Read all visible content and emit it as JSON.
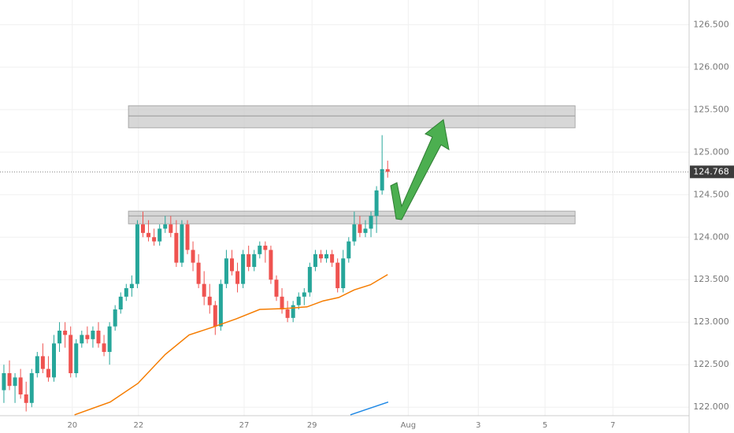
{
  "chart_data": {
    "type": "candlestick",
    "up_color": "#26a69a",
    "down_color": "#ef5350",
    "grid": true,
    "ylim": [
      121.9,
      126.79
    ],
    "yticks": [
      {
        "value": 122.0,
        "label": "122.000"
      },
      {
        "value": 122.5,
        "label": "122.500"
      },
      {
        "value": 123.0,
        "label": "123.000"
      },
      {
        "value": 123.5,
        "label": "123.500"
      },
      {
        "value": 124.0,
        "label": "124.000"
      },
      {
        "value": 124.5,
        "label": "124.500"
      },
      {
        "value": 125.0,
        "label": "125.000"
      },
      {
        "value": 125.5,
        "label": "125.500"
      },
      {
        "value": 126.0,
        "label": "126.000"
      },
      {
        "value": 126.5,
        "label": "126.500"
      }
    ],
    "xlim": [
      -0.7,
      123.2
    ],
    "xticks": [
      {
        "value": 12.3,
        "label": "20"
      },
      {
        "value": 24.2,
        "label": "22"
      },
      {
        "value": 43.2,
        "label": "27"
      },
      {
        "value": 55.4,
        "label": "29"
      },
      {
        "value": 72.7,
        "label": "Aug"
      },
      {
        "value": 85.3,
        "label": "3"
      },
      {
        "value": 97.3,
        "label": "5"
      },
      {
        "value": 109.5,
        "label": "7"
      }
    ],
    "last_price": 124.768,
    "ohlc": [
      [
        122.2,
        122.5,
        122.05,
        122.4
      ],
      [
        122.4,
        122.55,
        122.2,
        122.25
      ],
      [
        122.25,
        122.4,
        122.05,
        122.35
      ],
      [
        122.35,
        122.45,
        122.1,
        122.15
      ],
      [
        122.15,
        122.3,
        121.95,
        122.05
      ],
      [
        122.05,
        122.45,
        122.0,
        122.4
      ],
      [
        122.4,
        122.65,
        122.35,
        122.6
      ],
      [
        122.6,
        122.75,
        122.4,
        122.45
      ],
      [
        122.45,
        122.6,
        122.3,
        122.35
      ],
      [
        122.35,
        122.85,
        122.3,
        122.75
      ],
      [
        122.75,
        123.0,
        122.65,
        122.9
      ],
      [
        122.9,
        123.0,
        122.7,
        122.85
      ],
      [
        122.85,
        122.95,
        122.35,
        122.4
      ],
      [
        122.4,
        122.8,
        122.35,
        122.75
      ],
      [
        122.75,
        122.9,
        122.7,
        122.85
      ],
      [
        122.85,
        122.95,
        122.75,
        122.8
      ],
      [
        122.8,
        122.95,
        122.7,
        122.9
      ],
      [
        122.9,
        123.0,
        122.7,
        122.75
      ],
      [
        122.75,
        122.85,
        122.6,
        122.65
      ],
      [
        122.65,
        123.0,
        122.5,
        122.95
      ],
      [
        122.95,
        123.2,
        122.9,
        123.15
      ],
      [
        123.15,
        123.35,
        123.1,
        123.3
      ],
      [
        123.3,
        123.45,
        123.25,
        123.4
      ],
      [
        123.4,
        123.55,
        123.3,
        123.45
      ],
      [
        123.45,
        124.2,
        123.4,
        124.15
      ],
      [
        124.15,
        124.3,
        124.0,
        124.05
      ],
      [
        124.05,
        124.2,
        123.95,
        124.0
      ],
      [
        124.0,
        124.1,
        123.9,
        123.95
      ],
      [
        123.95,
        124.15,
        123.9,
        124.1
      ],
      [
        124.1,
        124.25,
        124.05,
        124.15
      ],
      [
        124.15,
        124.25,
        124.0,
        124.05
      ],
      [
        124.05,
        124.2,
        123.65,
        123.7
      ],
      [
        123.7,
        124.2,
        123.65,
        124.15
      ],
      [
        124.15,
        124.2,
        123.8,
        123.85
      ],
      [
        123.85,
        123.95,
        123.6,
        123.7
      ],
      [
        123.7,
        123.8,
        123.4,
        123.45
      ],
      [
        123.45,
        123.6,
        123.2,
        123.3
      ],
      [
        123.3,
        123.45,
        123.1,
        123.2
      ],
      [
        123.2,
        123.25,
        122.85,
        122.95
      ],
      [
        122.95,
        123.5,
        122.9,
        123.45
      ],
      [
        123.45,
        123.85,
        123.4,
        123.75
      ],
      [
        123.75,
        123.85,
        123.55,
        123.6
      ],
      [
        123.6,
        123.7,
        123.35,
        123.45
      ],
      [
        123.45,
        123.85,
        123.4,
        123.8
      ],
      [
        123.8,
        123.9,
        123.6,
        123.65
      ],
      [
        123.65,
        123.85,
        123.6,
        123.8
      ],
      [
        123.8,
        123.95,
        123.75,
        123.9
      ],
      [
        123.9,
        123.95,
        123.7,
        123.85
      ],
      [
        123.85,
        123.9,
        123.45,
        123.5
      ],
      [
        123.5,
        123.55,
        123.25,
        123.3
      ],
      [
        123.3,
        123.4,
        123.1,
        123.15
      ],
      [
        123.15,
        123.25,
        123.0,
        123.05
      ],
      [
        123.05,
        123.25,
        123.0,
        123.2
      ],
      [
        123.2,
        123.35,
        123.15,
        123.3
      ],
      [
        123.3,
        123.4,
        123.2,
        123.35
      ],
      [
        123.35,
        123.7,
        123.3,
        123.65
      ],
      [
        123.65,
        123.85,
        123.6,
        123.8
      ],
      [
        123.8,
        123.85,
        123.7,
        123.75
      ],
      [
        123.75,
        123.85,
        123.7,
        123.8
      ],
      [
        123.8,
        123.85,
        123.65,
        123.7
      ],
      [
        123.7,
        123.75,
        123.35,
        123.4
      ],
      [
        123.4,
        123.85,
        123.35,
        123.75
      ],
      [
        123.75,
        124.0,
        123.7,
        123.95
      ],
      [
        123.95,
        124.3,
        123.9,
        124.15
      ],
      [
        124.15,
        124.25,
        124.0,
        124.05
      ],
      [
        124.05,
        124.2,
        124.0,
        124.1
      ],
      [
        124.1,
        124.3,
        124.0,
        124.25
      ],
      [
        124.25,
        124.6,
        124.05,
        124.55
      ],
      [
        124.55,
        125.2,
        124.5,
        124.8
      ],
      [
        124.8,
        124.9,
        124.7,
        124.768
      ]
    ],
    "series": [
      {
        "color": "#f57c00",
        "x": [
          12.7,
          19.1,
          24.1,
          29.0,
          33.3,
          37.5,
          41.8,
          46.0,
          50.3,
          54.5,
          57.4,
          60.2,
          63.0,
          65.9,
          69.0
        ],
        "values": [
          121.91,
          122.06,
          122.28,
          122.62,
          122.85,
          122.94,
          123.04,
          123.15,
          123.16,
          123.18,
          123.25,
          123.29,
          123.38,
          123.44,
          123.56
        ]
      },
      {
        "color": "#1e88e5",
        "x": [
          62.3,
          65.9,
          69.1
        ],
        "values": [
          121.91,
          121.99,
          122.06
        ]
      }
    ],
    "zones": [
      {
        "from": 125.287,
        "to": 125.546,
        "mid": 125.426,
        "start": 22.4,
        "end": 102.7
      },
      {
        "from": 124.157,
        "to": 124.306,
        "mid": 124.25,
        "start": 22.4,
        "end": 102.7
      }
    ]
  }
}
